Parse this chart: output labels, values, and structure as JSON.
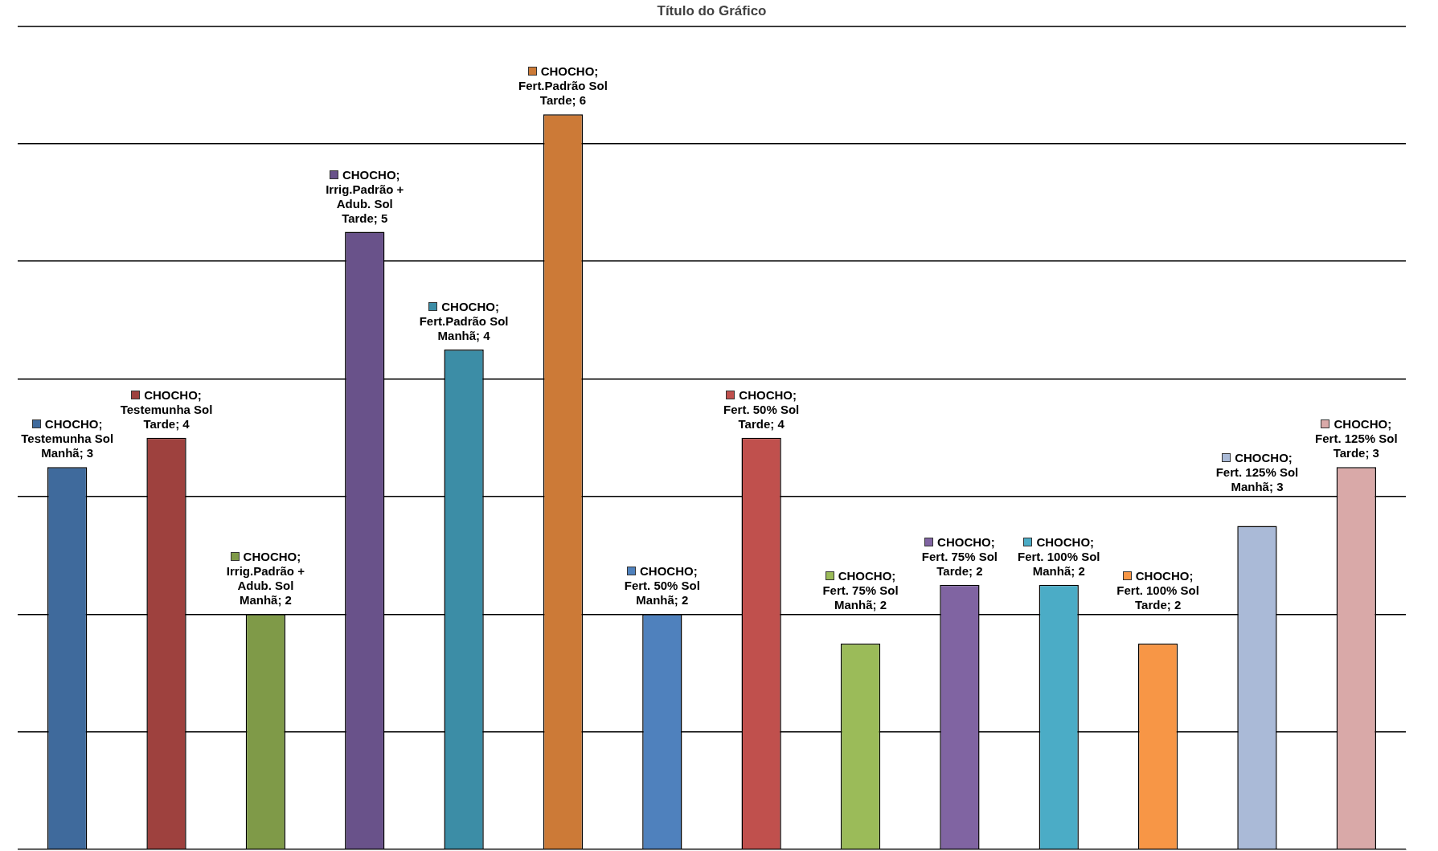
{
  "chart_data": {
    "type": "bar",
    "title": "Título do Gráfico",
    "categories": [
      null,
      null,
      null,
      null,
      null,
      null,
      null,
      null,
      null,
      null,
      null,
      null,
      null,
      null
    ],
    "values": [
      3.25,
      3.5,
      2,
      5.25,
      4.25,
      6.25,
      2,
      3.5,
      1.75,
      2.25,
      2.25,
      1.75,
      2.75,
      3.25
    ],
    "colors": [
      "#3f6a9c",
      "#9e413e",
      "#7f9a48",
      "#69528a",
      "#3c8da6",
      "#cc7a37",
      "#4f81bd",
      "#c0504d",
      "#9bbb59",
      "#8064a2",
      "#4bacc6",
      "#f79646",
      "#aabad7",
      "#d9a9a8"
    ],
    "value_labels": [
      "CHOCHO; Testemunha Sol Manhã; 3",
      "CHOCHO; Testemunha Sol Tarde; 4",
      "CHOCHO; Irrig.Padrão + Adub. Sol Manhã; 2",
      "CHOCHO; Irrig.Padrão + Adub. Sol Tarde; 5",
      "CHOCHO; Fert.Padrão Sol Manhã; 4",
      "CHOCHO; Fert.Padrão Sol Tarde; 6",
      "CHOCHO; Fert. 50% Sol Manhã; 2",
      "CHOCHO; Fert. 50% Sol Tarde; 4",
      "CHOCHO; Fert. 75% Sol Manhã; 2",
      "CHOCHO; Fert. 75% Sol Tarde; 2",
      "CHOCHO; Fert. 100% Sol Manhã; 2",
      "CHOCHO; Fert. 100% Sol Tarde; 2",
      "CHOCHO; Fert. 125% Sol Manhã; 3",
      "CHOCHO; Fert. 125% Sol Tarde; 3"
    ],
    "ylim": [
      0,
      7
    ],
    "yticks": [
      {
        "value": 0,
        "label": null
      },
      {
        "value": 1,
        "label": null
      },
      {
        "value": 2,
        "label": null
      },
      {
        "value": 3,
        "label": null
      },
      {
        "value": 4,
        "label": null
      },
      {
        "value": 5,
        "label": null
      },
      {
        "value": 6,
        "label": null
      },
      {
        "value": 7,
        "label": null
      }
    ],
    "grid": "y",
    "tick_labels": false
  }
}
